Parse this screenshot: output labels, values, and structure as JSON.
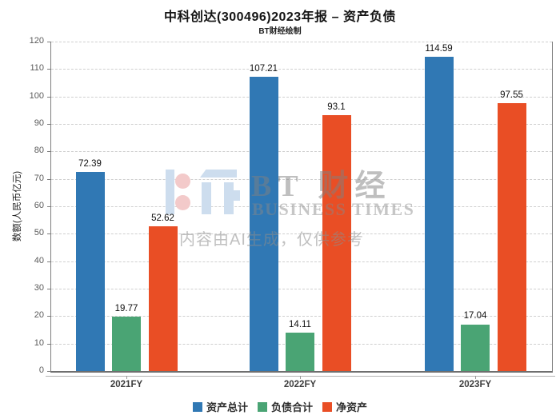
{
  "header": {
    "title": "中科创达(300496)2023年报 – 资产负债",
    "subtitle": "BT财经绘制"
  },
  "watermark": {
    "brand_cn": "BT 财经",
    "brand_en": "BUSINESS TIMES",
    "disclaimer": "内容由AI生成，仅供参考"
  },
  "chart_data": {
    "type": "bar",
    "title": "中科创达(300496)2023年报 – 资产负债",
    "subtitle": "BT财经绘制",
    "categories": [
      "2021FY",
      "2022FY",
      "2023FY"
    ],
    "series": [
      {
        "name": "资产总计",
        "color": "#3078b4",
        "values": [
          72.39,
          107.21,
          114.59
        ],
        "value_labels": [
          "72.39",
          "107.21",
          "114.59"
        ]
      },
      {
        "name": "负债合计",
        "color": "#4aa474",
        "values": [
          19.77,
          14.11,
          17.04
        ],
        "value_labels": [
          "19.77",
          "14.11",
          "17.04"
        ]
      },
      {
        "name": "净资产",
        "color": "#e94e25",
        "values": [
          52.62,
          93.1,
          97.55
        ],
        "value_labels": [
          "52.62",
          "93.1",
          "97.55"
        ]
      }
    ],
    "xlabel": "",
    "ylabel": "数额(人民币亿元)",
    "ylim": [
      0,
      120
    ],
    "ytick_step": 10,
    "grid": true,
    "grid_style": "dashed",
    "legend_position": "bottom"
  }
}
